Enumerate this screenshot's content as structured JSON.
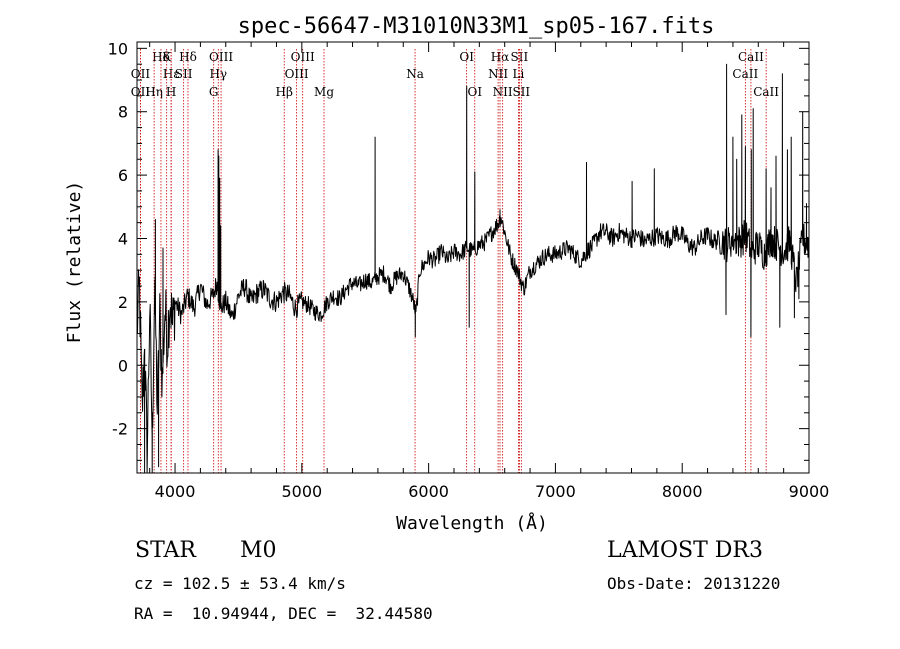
{
  "chart_data": {
    "type": "line",
    "title": "spec-56647-M31010N33M1_sp05-167.fits",
    "xlabel": "Wavelength (Å)",
    "ylabel": "Flux (relative)",
    "xlim": [
      3700,
      9000
    ],
    "ylim": [
      -3.4,
      10.2
    ],
    "xticks": [
      4000,
      5000,
      6000,
      7000,
      8000,
      9000
    ],
    "yticks": [
      -2,
      0,
      2,
      4,
      6,
      8,
      10
    ],
    "series": [
      {
        "name": "spectrum",
        "anchors": [
          [
            3700,
            1.2
          ],
          [
            3720,
            2.4
          ],
          [
            3740,
            -1.5
          ],
          [
            3760,
            0.5
          ],
          [
            3780,
            -2.8
          ],
          [
            3800,
            1.8
          ],
          [
            3820,
            -2.2
          ],
          [
            3840,
            2.6
          ],
          [
            3860,
            -1.4
          ],
          [
            3880,
            1.5
          ],
          [
            3900,
            -0.5
          ],
          [
            3920,
            1.8
          ],
          [
            3940,
            0.8
          ],
          [
            3960,
            2.2
          ],
          [
            3980,
            1.2
          ],
          [
            4000,
            2.0
          ],
          [
            4050,
            1.6
          ],
          [
            4100,
            2.2
          ],
          [
            4150,
            1.8
          ],
          [
            4200,
            2.5
          ],
          [
            4250,
            1.9
          ],
          [
            4300,
            2.2
          ],
          [
            4330,
            2.6
          ],
          [
            4360,
            1.8
          ],
          [
            4400,
            2.0
          ],
          [
            4450,
            1.5
          ],
          [
            4500,
            2.2
          ],
          [
            4550,
            2.5
          ],
          [
            4600,
            2.0
          ],
          [
            4650,
            2.3
          ],
          [
            4700,
            2.4
          ],
          [
            4750,
            2.1
          ],
          [
            4800,
            2.0
          ],
          [
            4850,
            2.3
          ],
          [
            4900,
            2.2
          ],
          [
            4950,
            1.8
          ],
          [
            5000,
            2.0
          ],
          [
            5050,
            1.9
          ],
          [
            5100,
            1.7
          ],
          [
            5150,
            1.6
          ],
          [
            5200,
            2.0
          ],
          [
            5250,
            2.2
          ],
          [
            5300,
            2.1
          ],
          [
            5350,
            2.4
          ],
          [
            5400,
            2.6
          ],
          [
            5450,
            2.5
          ],
          [
            5500,
            2.7
          ],
          [
            5550,
            2.6
          ],
          [
            5600,
            2.8
          ],
          [
            5650,
            2.9
          ],
          [
            5700,
            2.5
          ],
          [
            5750,
            2.8
          ],
          [
            5800,
            2.9
          ],
          [
            5850,
            2.4
          ],
          [
            5880,
            2.0
          ],
          [
            5900,
            1.6
          ],
          [
            5930,
            3.0
          ],
          [
            5950,
            3.1
          ],
          [
            6000,
            3.4
          ],
          [
            6050,
            3.3
          ],
          [
            6100,
            3.6
          ],
          [
            6150,
            3.3
          ],
          [
            6200,
            3.6
          ],
          [
            6250,
            3.5
          ],
          [
            6300,
            3.7
          ],
          [
            6350,
            3.6
          ],
          [
            6400,
            3.8
          ],
          [
            6450,
            3.9
          ],
          [
            6500,
            4.2
          ],
          [
            6550,
            4.5
          ],
          [
            6570,
            4.7
          ],
          [
            6600,
            4.2
          ],
          [
            6650,
            3.4
          ],
          [
            6700,
            3.0
          ],
          [
            6750,
            2.4
          ],
          [
            6800,
            3.0
          ],
          [
            6850,
            3.2
          ],
          [
            6900,
            3.4
          ],
          [
            6950,
            3.5
          ],
          [
            7000,
            3.5
          ],
          [
            7050,
            3.6
          ],
          [
            7100,
            3.7
          ],
          [
            7150,
            3.5
          ],
          [
            7200,
            3.3
          ],
          [
            7250,
            3.6
          ],
          [
            7300,
            3.8
          ],
          [
            7350,
            4.2
          ],
          [
            7400,
            4.2
          ],
          [
            7450,
            4.0
          ],
          [
            7500,
            4.2
          ],
          [
            7550,
            4.1
          ],
          [
            7600,
            4.0
          ],
          [
            7650,
            4.1
          ],
          [
            7700,
            3.9
          ],
          [
            7750,
            4.0
          ],
          [
            7800,
            4.1
          ],
          [
            7850,
            4.0
          ],
          [
            7900,
            4.0
          ],
          [
            7950,
            4.2
          ],
          [
            8000,
            4.1
          ],
          [
            8050,
            3.8
          ],
          [
            8100,
            3.7
          ],
          [
            8150,
            4.0
          ],
          [
            8200,
            4.1
          ],
          [
            8250,
            3.9
          ],
          [
            8300,
            4.0
          ],
          [
            8350,
            3.8
          ],
          [
            8400,
            4.0
          ],
          [
            8450,
            3.9
          ],
          [
            8500,
            4.1
          ],
          [
            8550,
            3.6
          ],
          [
            8600,
            3.8
          ],
          [
            8650,
            3.5
          ],
          [
            8700,
            4.0
          ],
          [
            8750,
            3.8
          ],
          [
            8800,
            3.6
          ],
          [
            8850,
            3.9
          ],
          [
            8900,
            2.6
          ],
          [
            8950,
            4.0
          ],
          [
            9000,
            3.8
          ]
        ],
        "features": [
          [
            3760,
            -3.4
          ],
          [
            3820,
            -3.4
          ],
          [
            3845,
            4.6
          ],
          [
            3870,
            -3.2
          ],
          [
            3905,
            3.7
          ],
          [
            4340,
            6.8
          ],
          [
            4345,
            6.6
          ],
          [
            4352,
            5.9
          ],
          [
            4360,
            4.4
          ],
          [
            5578,
            7.2
          ],
          [
            5895,
            0.9
          ],
          [
            6300,
            8.8
          ],
          [
            6320,
            1.2
          ],
          [
            6364,
            6.1
          ],
          [
            6563,
            4.9
          ],
          [
            7245,
            6.4
          ],
          [
            7605,
            5.8
          ],
          [
            7780,
            6.2
          ],
          [
            8345,
            1.6
          ],
          [
            8350,
            9.5
          ],
          [
            8400,
            7.2
          ],
          [
            8430,
            6.5
          ],
          [
            8470,
            7.9
          ],
          [
            8498,
            6.9
          ],
          [
            8542,
            0.9
          ],
          [
            8545,
            6.8
          ],
          [
            8560,
            8.1
          ],
          [
            8662,
            6.2
          ],
          [
            8700,
            5.6
          ],
          [
            8740,
            6.6
          ],
          [
            8770,
            1.2
          ],
          [
            8790,
            9.2
          ],
          [
            8830,
            6.8
          ],
          [
            8860,
            7.2
          ],
          [
            8885,
            1.5
          ],
          [
            8920,
            2.1
          ],
          [
            8950,
            8.0
          ],
          [
            8980,
            5.1
          ]
        ]
      }
    ],
    "lines": [
      {
        "label": "Hδ",
        "x": 3889,
        "row": 0
      },
      {
        "label": "OII",
        "x": 3727,
        "row": 1
      },
      {
        "label": "OII",
        "x": 3727,
        "row": 2
      },
      {
        "label": "Hε",
        "x": 3970,
        "row": 1
      },
      {
        "label": "Hη",
        "x": 3835,
        "row": 2
      },
      {
        "label": "K",
        "x": 3934,
        "row": 0
      },
      {
        "label": "Hδ",
        "x": 4102,
        "row": 0
      },
      {
        "label": "SII",
        "x": 4068,
        "row": 1
      },
      {
        "label": "H",
        "x": 3969,
        "row": 2
      },
      {
        "label": "OIII",
        "x": 4363,
        "row": 0
      },
      {
        "label": "Hγ",
        "x": 4341,
        "row": 1
      },
      {
        "label": "G",
        "x": 4305,
        "row": 2
      },
      {
        "label": "OIII",
        "x": 5007,
        "row": 0
      },
      {
        "label": "OIII",
        "x": 4959,
        "row": 1
      },
      {
        "label": "Hβ",
        "x": 4861,
        "row": 2
      },
      {
        "label": "Mg",
        "x": 5175,
        "row": 2
      },
      {
        "label": "Na",
        "x": 5893,
        "row": 1
      },
      {
        "label": "OI",
        "x": 6300,
        "row": 0
      },
      {
        "label": "OI",
        "x": 6364,
        "row": 2
      },
      {
        "label": "Hα",
        "x": 6563,
        "row": 0
      },
      {
        "label": "SII",
        "x": 6716,
        "row": 0
      },
      {
        "label": "NII",
        "x": 6548,
        "row": 1
      },
      {
        "label": "Li",
        "x": 6708,
        "row": 1
      },
      {
        "label": "NII",
        "x": 6584,
        "row": 2
      },
      {
        "label": "SII",
        "x": 6731,
        "row": 2
      },
      {
        "label": "CaII",
        "x": 8542,
        "row": 0
      },
      {
        "label": "CaII",
        "x": 8498,
        "row": 1
      },
      {
        "label": "CaII",
        "x": 8662,
        "row": 2
      }
    ]
  },
  "info": {
    "class_label": "STAR",
    "subclass": "M0",
    "survey": "LAMOST DR3",
    "redshift": "cz = 102.5 ± 53.4 km/s",
    "obs_date": "Obs-Date: 20131220",
    "coords": "RA =  10.94944, DEC =  32.44580"
  },
  "colors": {
    "axis": "#000000",
    "spectrum": "#000000",
    "line_marker": "#cc0000"
  }
}
